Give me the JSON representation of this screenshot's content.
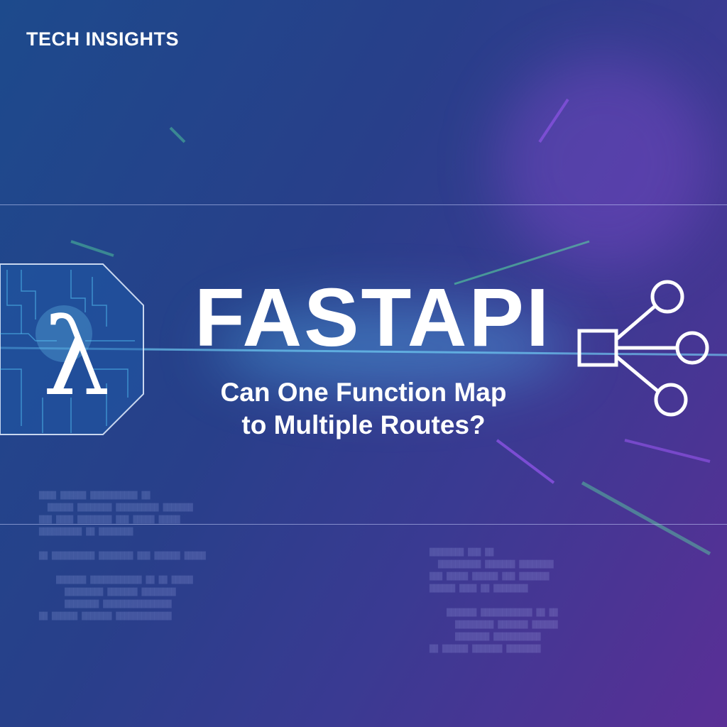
{
  "brand": "TECH INSIGHTS",
  "title": "FASTAPI",
  "subtitle": [
    "Can One Function Map",
    "to Multiple Routes?"
  ],
  "left_icon": {
    "name": "lambda-circuit-icon",
    "glyph": "λ"
  },
  "right_icon": {
    "name": "route-branch-icon"
  },
  "colors": {
    "accent_cyan": "#4fd8ff",
    "accent_purple": "#a55cff",
    "accent_green": "#5cf0a0"
  }
}
